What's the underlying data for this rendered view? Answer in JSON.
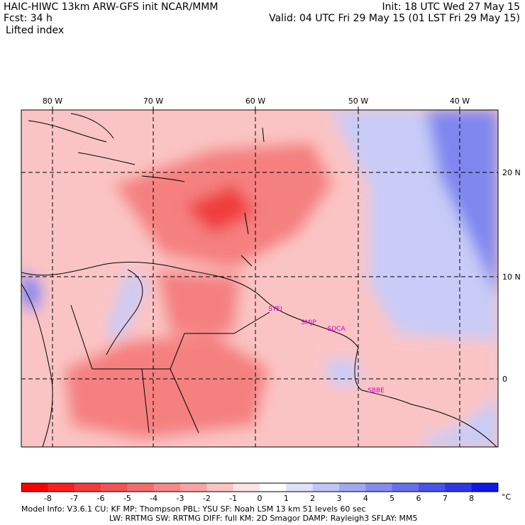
{
  "header": {
    "title_left": "HAIC-HIWC 13km ARW-GFS init   NCAR/MMM",
    "init": "Init: 18 UTC Wed 27 May 15",
    "fcst": "Fcst:   34 h",
    "valid": "Valid: 04 UTC Fri 29 May 15 (01 LST Fri 29 May 15)",
    "field": "Lifted index"
  },
  "map": {
    "lon_labels": [
      "80 W",
      "70 W",
      "60 W",
      "50 W",
      "40 W"
    ],
    "lat_labels": [
      "20 N",
      "10 N",
      "0"
    ],
    "stations": [
      "SYEI",
      "SMJP",
      "SOCA",
      "SBBE"
    ],
    "colors": {
      "neg_strong": "#f03c3c",
      "neg_mid": "#f58080",
      "neg_light": "#fbc4c4",
      "neutral": "#ffffff",
      "pos_light": "#c8ccf7",
      "pos_mid": "#7f87ef",
      "pos_strong": "#1a22e8",
      "station": "#d000d0"
    }
  },
  "legend": {
    "ticks": [
      "-8",
      "-7",
      "-6",
      "-5",
      "-4",
      "-3",
      "-2",
      "-1",
      "0",
      "1",
      "2",
      "3",
      "4",
      "5",
      "6",
      "7",
      "8"
    ],
    "unit": "°C",
    "colors": [
      "#ff0000",
      "#f82020",
      "#f43c3c",
      "#f35454",
      "#f46c6c",
      "#f68888",
      "#f8a4a4",
      "#fbc4c4",
      "#fde4e4",
      "#ffffff",
      "#dfe1fb",
      "#c2c6f6",
      "#a3a8f2",
      "#858cef",
      "#6770eb",
      "#4a53e9",
      "#2e37e7",
      "#1018e8"
    ]
  },
  "footer": {
    "line1_left": "Model Info: V3.6.1    CU: KF      MP: Thompson      PBL: YSU         SF: Noah LSM       13 km    51 levels    60 sec",
    "line2": "LW: RRTMG     SW: RRTMG   DIFF: full    KM: 2D Smagor DAMP: Rayleigh3   SFLAY: MM5"
  }
}
